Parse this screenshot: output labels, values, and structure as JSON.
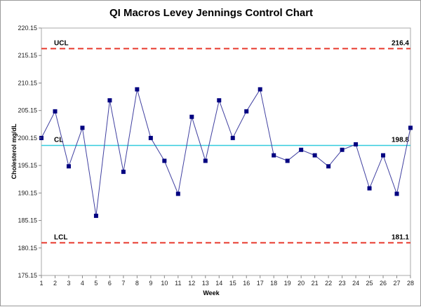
{
  "chart_data": {
    "type": "line",
    "title": "QI Macros Levey Jennings Control Chart",
    "xlabel": "Week",
    "ylabel": "Cholesterol mg/dL",
    "x": [
      1,
      2,
      3,
      4,
      5,
      6,
      7,
      8,
      9,
      10,
      11,
      12,
      13,
      14,
      15,
      16,
      17,
      18,
      19,
      20,
      21,
      22,
      23,
      24,
      25,
      26,
      27,
      28
    ],
    "xlim": [
      1,
      28
    ],
    "ylim": [
      175.15,
      220.15
    ],
    "y_ticks": [
      "175.15",
      "180.15",
      "185.15",
      "190.15",
      "195.15",
      "200.15",
      "205.15",
      "210.15",
      "215.15",
      "220.15"
    ],
    "series": [
      {
        "values": [
          200.15,
          205,
          195,
          202,
          186,
          207,
          194,
          209,
          200.15,
          196,
          190,
          204,
          196,
          207,
          200.15,
          205,
          209,
          197,
          196,
          198,
          197,
          195,
          198,
          199,
          191,
          197,
          190,
          202
        ],
        "color": "#4040a0",
        "marker_color": "#000080"
      }
    ],
    "control_limits": [
      {
        "name": "UCL",
        "value": 216.4,
        "label": "216.4",
        "color": "#e8392c",
        "style": "dashed"
      },
      {
        "name": "CL",
        "value": 198.8,
        "label": "198.8",
        "color": "#33ccdd",
        "style": "solid"
      },
      {
        "name": "LCL",
        "value": 181.1,
        "label": "181.1",
        "color": "#e8392c",
        "style": "dashed"
      }
    ],
    "grid": false,
    "legend": "none"
  }
}
